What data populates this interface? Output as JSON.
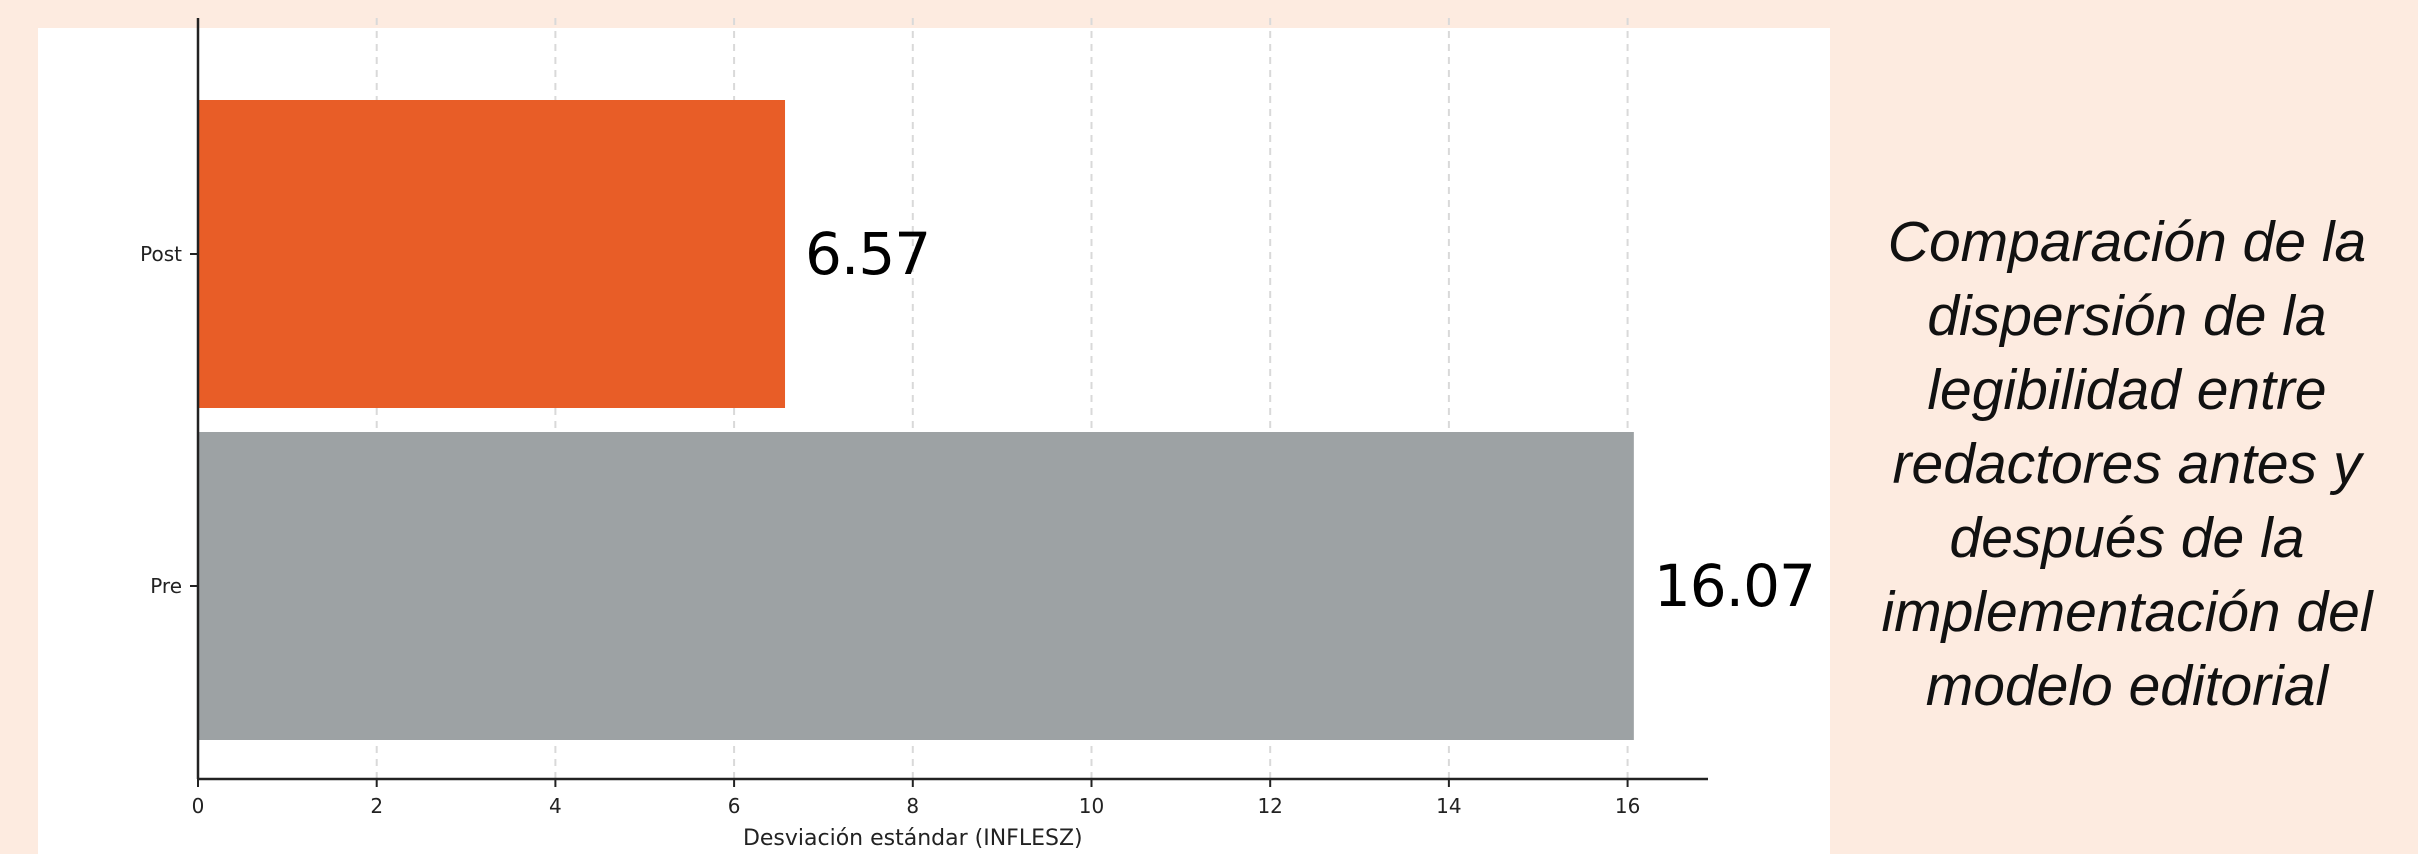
{
  "caption": "Comparación de la dispersión de la legibilidad entre redactores antes y después de la implementación del modelo editorial",
  "chart_data": {
    "type": "bar",
    "orientation": "horizontal",
    "categories": [
      "Pre",
      "Post"
    ],
    "values": [
      16.07,
      6.57
    ],
    "colors": [
      "#9da2a4",
      "#e85d27"
    ],
    "data_labels": [
      "16.07",
      "6.57"
    ],
    "xlabel": "Desviación estándar (INFLESZ)",
    "ylabel": "",
    "xlim": [
      0,
      16.9
    ],
    "xticks": [
      0,
      2,
      4,
      6,
      8,
      10,
      12,
      14,
      16
    ],
    "xtick_labels": [
      "0",
      "2",
      "4",
      "6",
      "8",
      "10",
      "12",
      "14",
      "16"
    ],
    "grid": "x-axis dashed",
    "legend": "none"
  }
}
